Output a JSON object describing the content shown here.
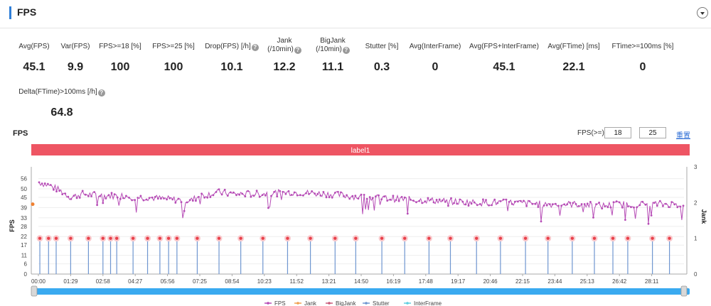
{
  "header": {
    "title": "FPS"
  },
  "metrics": [
    {
      "label": "Avg(FPS)",
      "value": "45.1"
    },
    {
      "label": "Var(FPS)",
      "value": "9.9"
    },
    {
      "label": "FPS>=18 [%]",
      "value": "100"
    },
    {
      "label": "FPS>=25 [%]",
      "value": "100"
    },
    {
      "label": "Drop(FPS) [/h]",
      "value": "10.1",
      "help": true
    },
    {
      "label": "Jank",
      "label2": "(/10min)",
      "value": "12.2",
      "help": true
    },
    {
      "label": "BigJank",
      "label2": "(/10min)",
      "value": "11.1",
      "help": true
    },
    {
      "label": "Stutter [%]",
      "value": "0.3"
    },
    {
      "label": "Avg(InterFrame)",
      "value": "0"
    },
    {
      "label": "Avg(FPS+InterFrame)",
      "value": "45.1"
    },
    {
      "label": "Avg(FTime) [ms]",
      "value": "22.1"
    },
    {
      "label": "FTime>=100ms [%]",
      "value": "0"
    },
    {
      "label": "Delta(FTime)>100ms [/h]",
      "value": "64.8",
      "help": true
    }
  ],
  "help_glyph": "?",
  "chart_section": {
    "title": "FPS",
    "filter_label": "FPS(>=)",
    "threshold_1": "18",
    "threshold_2": "25",
    "reset_label": "重置"
  },
  "chart_data": {
    "type": "line",
    "label_band": "label1",
    "y_axis_label": "FPS",
    "y2_axis_label": "Jank",
    "y_ticks": [
      0,
      6,
      11,
      17,
      22,
      28,
      33,
      39,
      45,
      50,
      56
    ],
    "y2_ticks": [
      0,
      1,
      2,
      3
    ],
    "ylim": [
      0,
      60
    ],
    "y2lim": [
      0,
      3
    ],
    "x_ticks": [
      "00:00",
      "01:29",
      "02:58",
      "04:27",
      "05:56",
      "07:25",
      "08:54",
      "10:23",
      "11:52",
      "13:21",
      "14:50",
      "16:19",
      "17:48",
      "19:17",
      "20:46",
      "22:15",
      "23:44",
      "25:13",
      "26:42",
      "28:11"
    ],
    "duration_seconds": 1780,
    "fps_trend": {
      "t": [
        0,
        30,
        60,
        89,
        120,
        178,
        240,
        267,
        300,
        356,
        420,
        445,
        500,
        534,
        600,
        700,
        800,
        900,
        1000,
        1100,
        1200,
        1300,
        1400,
        1500,
        1550,
        1600,
        1700,
        1780
      ],
      "fps": [
        54,
        52,
        49,
        45,
        47,
        46,
        46,
        45,
        45,
        44,
        43,
        46,
        48,
        47,
        47,
        48,
        47,
        45,
        44,
        43,
        42,
        42,
        41,
        41,
        40,
        41,
        41,
        41
      ]
    },
    "jank_events_seconds": [
      4,
      28,
      49,
      89,
      138,
      178,
      199,
      216,
      261,
      301,
      335,
      359,
      382,
      438,
      498,
      558,
      619,
      687,
      750,
      818,
      875,
      947,
      1010,
      1077,
      1136,
      1208,
      1274,
      1343,
      1405,
      1472,
      1533,
      1584,
      1625,
      1693,
      1740
    ],
    "series": [
      {
        "name": "FPS",
        "color": "#b64cb6"
      },
      {
        "name": "Jank",
        "color": "#f0a050"
      },
      {
        "name": "BigJank",
        "color": "#c85a7a"
      },
      {
        "name": "Stutter",
        "color": "#6f96d0"
      },
      {
        "name": "InterFrame",
        "color": "#5fcfe0"
      }
    ]
  }
}
